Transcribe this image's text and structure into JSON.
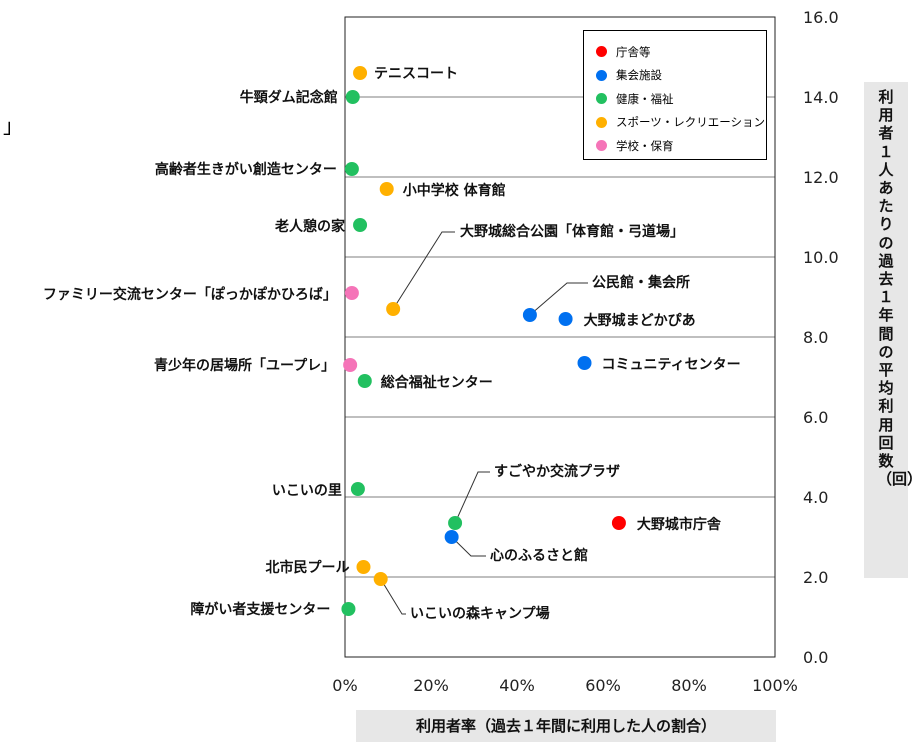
{
  "stray_mark": "」",
  "chart_data": {
    "type": "scatter",
    "xlabel": "利用者率（過去１年間に利用した人の割合）",
    "ylabel": "利用者１人あたりの過去１年間の平均利用回数（回）",
    "xlim": [
      0,
      100
    ],
    "ylim": [
      0,
      16
    ],
    "x_unit": "%",
    "xticks": [
      "0%",
      "20%",
      "40%",
      "60%",
      "80%",
      "100%"
    ],
    "yticks": [
      "0.0",
      "2.0",
      "4.0",
      "6.0",
      "8.0",
      "10.0",
      "12.0",
      "14.0",
      "16.0"
    ],
    "grid": "horizontal",
    "legend_position": "top-right",
    "categories": [
      {
        "name": "庁舎等",
        "color": "#ff0000"
      },
      {
        "name": "集会施設",
        "color": "#0070f0"
      },
      {
        "name": "健康・福祉",
        "color": "#22c060"
      },
      {
        "name": "スポーツ・レクリエーション",
        "color": "#ffb000"
      },
      {
        "name": "学校・保育",
        "color": "#f574b8"
      }
    ],
    "points": [
      {
        "label": "テニスコート",
        "category": 3,
        "x": 3.5,
        "y": 14.6
      },
      {
        "label": "牛頸ダム記念館",
        "category": 2,
        "x": 1.8,
        "y": 14.0
      },
      {
        "label": "高齢者生きがい創造センター",
        "category": 2,
        "x": 1.6,
        "y": 12.2
      },
      {
        "label": "小中学校 体育館",
        "category": 3,
        "x": 9.7,
        "y": 11.7
      },
      {
        "label": "老人憩の家",
        "category": 2,
        "x": 3.5,
        "y": 10.8
      },
      {
        "label": "大野城総合公園「体育館・弓道場」",
        "category": 3,
        "x": 11.2,
        "y": 8.7
      },
      {
        "label": "ファミリー交流センター「ぽっかぽかひろば」",
        "category": 4,
        "x": 1.6,
        "y": 9.1
      },
      {
        "label": "公民館・集会所",
        "category": 1,
        "x": 43.0,
        "y": 8.55
      },
      {
        "label": "大野城まどかぴあ",
        "category": 1,
        "x": 51.3,
        "y": 8.45
      },
      {
        "label": "コミュニティセンター",
        "category": 1,
        "x": 55.7,
        "y": 7.35
      },
      {
        "label": "青少年の居場所「ユープレ」",
        "category": 4,
        "x": 1.2,
        "y": 7.3
      },
      {
        "label": "総合福祉センター",
        "category": 2,
        "x": 4.6,
        "y": 6.9
      },
      {
        "label": "いこいの里",
        "category": 2,
        "x": 3.0,
        "y": 4.2
      },
      {
        "label": "すごやか交流プラザ",
        "category": 2,
        "x": 25.6,
        "y": 3.35
      },
      {
        "label": "大野城市庁舎",
        "category": 0,
        "x": 63.7,
        "y": 3.35
      },
      {
        "label": "心のふるさと館",
        "category": 1,
        "x": 24.8,
        "y": 3.0
      },
      {
        "label": "北市民プール",
        "category": 3,
        "x": 4.3,
        "y": 2.25
      },
      {
        "label": "いこいの森キャンプ場",
        "category": 3,
        "x": 8.3,
        "y": 1.95
      },
      {
        "label": "障がい者支援センター",
        "category": 2,
        "x": 0.8,
        "y": 1.2
      }
    ]
  }
}
